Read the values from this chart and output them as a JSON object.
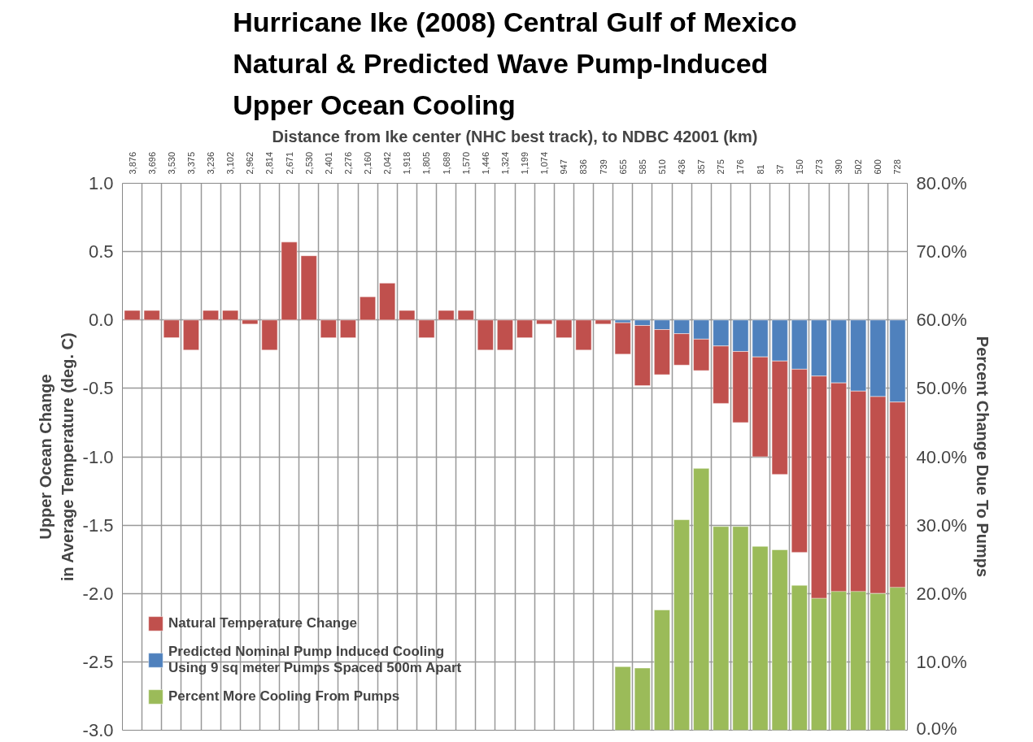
{
  "chart_data": {
    "type": "bar",
    "title": "Hurricane Ike (2008) Central Gulf of Mexico\nNatural & Predicted Wave Pump-Induced\nUpper Ocean Cooling",
    "xlabel": "Distance from Ike center (NHC best track), to NDBC 42001 (km)",
    "ylabel": "Upper Ocean Change\nin Average Temperature (deg. C)",
    "y2label": "Percent Change Due To Pumps",
    "categories": [
      "3,876",
      "3,696",
      "3,530",
      "3,375",
      "3,236",
      "3,102",
      "2,962",
      "2,814",
      "2,671",
      "2,530",
      "2,401",
      "2,276",
      "2,160",
      "2,042",
      "1,918",
      "1,805",
      "1,689",
      "1,570",
      "1,446",
      "1,324",
      "1,199",
      "1,074",
      "947",
      "836",
      "739",
      "655",
      "585",
      "510",
      "436",
      "357",
      "275",
      "176",
      "81",
      "37",
      "150",
      "273",
      "390",
      "502",
      "600",
      "728"
    ],
    "stacked": true,
    "series": [
      {
        "name": "Predicted Nominal Pump Induced Cooling\nUsing 9 sq meter Pumps Spaced 500m Apart",
        "color": "#4f81bd",
        "values": [
          null,
          null,
          null,
          null,
          null,
          null,
          null,
          null,
          null,
          null,
          null,
          null,
          null,
          null,
          null,
          null,
          null,
          null,
          null,
          null,
          null,
          null,
          null,
          null,
          null,
          -0.02,
          -0.04,
          -0.07,
          -0.1,
          -0.14,
          -0.19,
          -0.23,
          -0.27,
          -0.3,
          -0.36,
          -0.41,
          -0.46,
          -0.52,
          -0.56,
          -0.6
        ]
      },
      {
        "name": "Natural Temperature Change",
        "color": "#c0504d",
        "values": [
          0.07,
          0.07,
          -0.13,
          -0.22,
          0.07,
          0.07,
          -0.03,
          -0.22,
          0.57,
          0.47,
          -0.13,
          -0.13,
          0.17,
          0.27,
          0.07,
          -0.13,
          0.07,
          0.07,
          -0.22,
          -0.22,
          -0.13,
          -0.03,
          -0.13,
          -0.22,
          -0.03,
          -0.23,
          -0.44,
          -0.33,
          -0.23,
          -0.23,
          -0.42,
          -0.52,
          -0.73,
          -0.83,
          -1.34,
          -1.63,
          -1.53,
          -1.47,
          -1.44,
          -1.36
        ]
      },
      {
        "name": "Percent More Cooling From Pumps",
        "color": "#9bbb59",
        "axis": "y2",
        "values": [
          null,
          null,
          null,
          null,
          null,
          null,
          null,
          null,
          null,
          null,
          null,
          null,
          null,
          null,
          null,
          null,
          null,
          null,
          null,
          null,
          null,
          null,
          null,
          null,
          null,
          9.3,
          9.1,
          17.6,
          30.8,
          38.3,
          29.8,
          29.8,
          26.9,
          26.4,
          21.2,
          19.3,
          20.3,
          20.3,
          20.0,
          20.9
        ]
      }
    ],
    "ylim": [
      -3,
      1
    ],
    "yticks": [
      {
        "value": -3,
        "label": "-3.0"
      },
      {
        "value": -2.5,
        "label": "-2.5"
      },
      {
        "value": -2,
        "label": "-2.0"
      },
      {
        "value": -1.5,
        "label": "-1.5"
      },
      {
        "value": -1,
        "label": "-1.0"
      },
      {
        "value": -0.5,
        "label": "-0.5"
      },
      {
        "value": 0,
        "label": "0.0"
      },
      {
        "value": 0.5,
        "label": "0.5"
      },
      {
        "value": 1,
        "label": "1.0"
      }
    ],
    "y2lim": [
      0,
      80
    ],
    "y2ticks": [
      {
        "value": 0,
        "label": "0.0%"
      },
      {
        "value": 10,
        "label": "10.0%"
      },
      {
        "value": 20,
        "label": "20.0%"
      },
      {
        "value": 30,
        "label": "30.0%"
      },
      {
        "value": 40,
        "label": "40.0%"
      },
      {
        "value": 50,
        "label": "50.0%"
      },
      {
        "value": 60,
        "label": "60.0%"
      },
      {
        "value": 70,
        "label": "70.0%"
      },
      {
        "value": 80,
        "label": "80.0%"
      }
    ],
    "grid": true,
    "legend": "bottom left"
  }
}
